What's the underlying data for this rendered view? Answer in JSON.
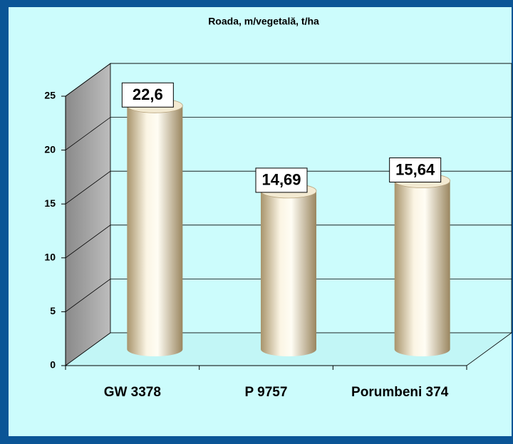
{
  "chart_data": {
    "type": "bar3d",
    "title": "Roada, m/vegetală, t/ha",
    "categories": [
      "GW 3378",
      "P 9757",
      "Porumbeni 374"
    ],
    "values": [
      22.6,
      14.69,
      15.64
    ],
    "value_labels": [
      "22,6",
      "14,69",
      "15,64"
    ],
    "color": "#e9dcbc",
    "ylim": [
      0,
      25
    ],
    "yticks": [
      0,
      5,
      10,
      15,
      20,
      25
    ],
    "grid": true
  }
}
